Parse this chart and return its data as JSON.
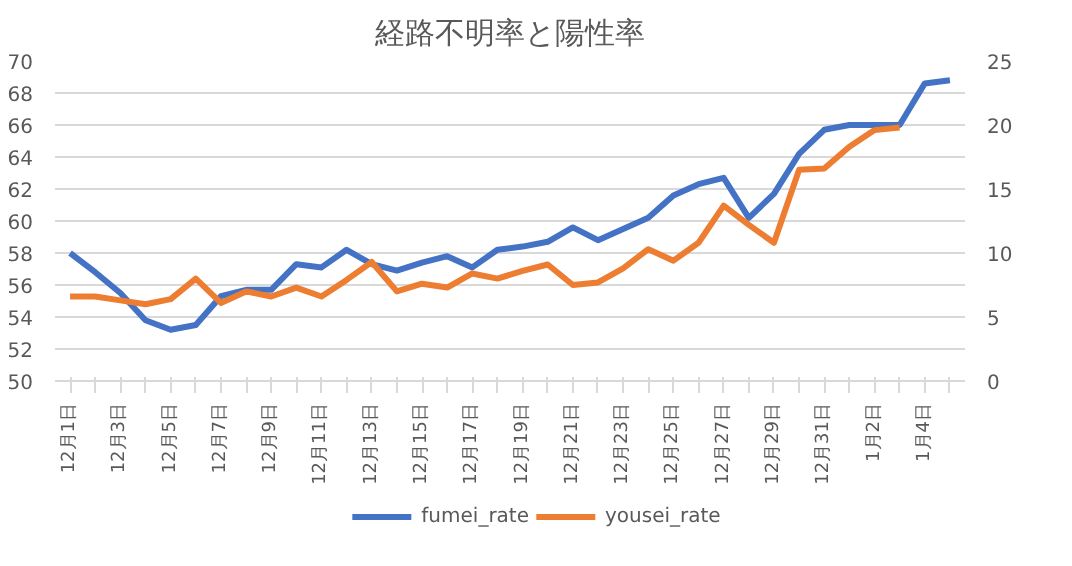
{
  "chart_data": {
    "type": "line",
    "title": "経路不明率と陽性率",
    "categories": [
      "12月1日",
      null,
      "12月3日",
      null,
      "12月5日",
      null,
      "12月7日",
      null,
      "12月9日",
      null,
      "12月11日",
      null,
      "12月13日",
      null,
      "12月15日",
      null,
      "12月17日",
      null,
      "12月19日",
      null,
      "12月21日",
      null,
      "12月23日",
      null,
      "12月25日",
      null,
      "12月27日",
      null,
      "12月29日",
      null,
      "12月31日",
      null,
      "1月2日",
      null,
      "1月4日",
      null
    ],
    "series": [
      {
        "name": "fumei_rate",
        "color": "#4472c4",
        "values": [
          58.0,
          56.8,
          55.5,
          53.8,
          53.2,
          53.5,
          55.3,
          55.7,
          55.7,
          57.3,
          57.1,
          58.2,
          57.3,
          56.9,
          57.4,
          57.8,
          57.1,
          58.2,
          58.4,
          58.7,
          59.6,
          58.8,
          59.5,
          60.2,
          61.6,
          62.3,
          62.7,
          60.2,
          61.7,
          64.2,
          65.7,
          66.0,
          66.0,
          66.0,
          68.6,
          68.8
        ]
      },
      {
        "name": "yousei_rate",
        "color": "#ed7d31",
        "axis": "y2",
        "values": [
          6.6,
          6.6,
          6.3,
          6.0,
          6.4,
          8.0,
          6.1,
          7.0,
          6.6,
          7.3,
          6.6,
          7.9,
          9.3,
          7.0,
          7.6,
          7.3,
          8.4,
          8.0,
          8.6,
          9.1,
          7.5,
          7.7,
          8.8,
          10.3,
          9.4,
          10.8,
          13.7,
          12.2,
          10.8,
          16.5,
          16.6,
          18.3,
          19.6,
          19.8,
          null,
          null
        ]
      }
    ],
    "ylim": [
      50,
      70
    ],
    "yticks": [
      50,
      52,
      54,
      56,
      58,
      60,
      62,
      64,
      66,
      68,
      70
    ],
    "y2lim": [
      0,
      25
    ],
    "y2ticks": [
      0,
      5,
      10,
      15,
      20,
      25
    ],
    "grid": "y",
    "legend": "bottom",
    "line_style": "solid"
  }
}
